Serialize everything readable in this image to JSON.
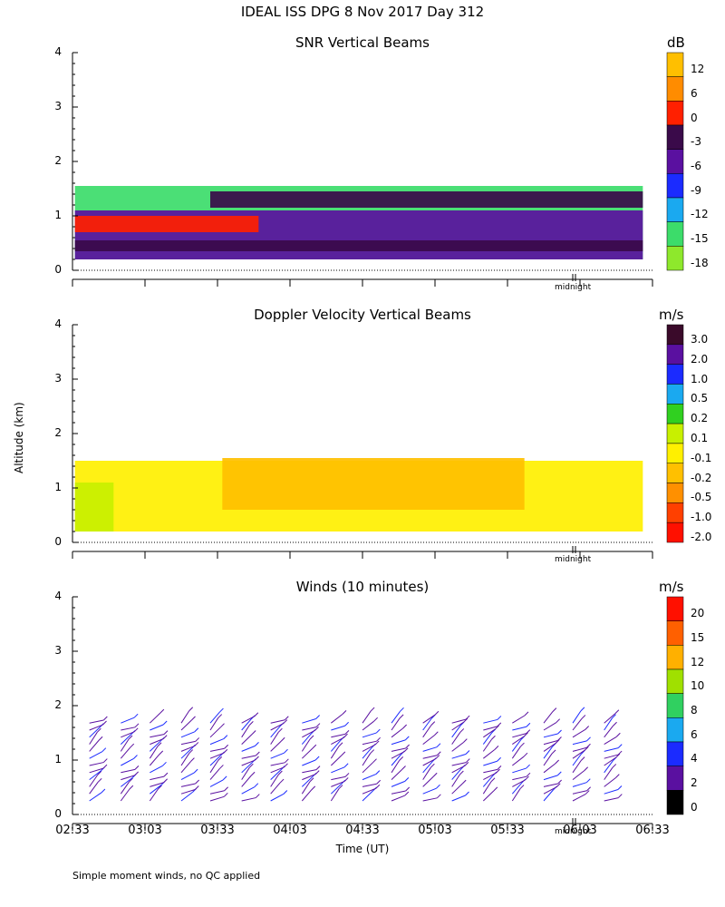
{
  "header": {
    "title": "IDEAL ISS DPG    8 Nov 2017 Day 312"
  },
  "axis": {
    "ylabel": "Altitude (km)",
    "xlabel": "Time (UT)",
    "y_ticks": [
      "0",
      "1",
      "2",
      "3",
      "4"
    ],
    "x_ticks": [
      "02:33",
      "03:03",
      "03:33",
      "04:03",
      "04:33",
      "05:03",
      "05:33",
      "06:03",
      "06:33"
    ],
    "midnight_label": "midnight"
  },
  "footnote": "Simple moment winds, no QC applied",
  "chart_data": [
    {
      "type": "heatmap",
      "title": "SNR Vertical Beams",
      "units": "dB",
      "ylabel": "Altitude (km)",
      "ylim": [
        0,
        4
      ],
      "x_range": [
        "02:33",
        "06:33"
      ],
      "colorbar": {
        "labels": [
          "12",
          "6",
          "0",
          "-3",
          "-6",
          "-9",
          "-12",
          "-15",
          "-18"
        ],
        "colors": [
          "#FFBF00",
          "#FF8C00",
          "#FF2000",
          "#3A0A4A",
          "#5A10A0",
          "#1B2BFF",
          "#1AA9F0",
          "#3CDC6A",
          "#8EE82C"
        ]
      },
      "layers": [
        {
          "x": [
            "02:34",
            "06:29"
          ],
          "y": [
            0.2,
            1.55
          ],
          "level": "-15"
        },
        {
          "x": [
            "02:34",
            "06:29"
          ],
          "y": [
            0.2,
            1.1
          ],
          "level": "-6"
        },
        {
          "x": [
            "02:34",
            "03:50"
          ],
          "y": [
            0.7,
            1.0
          ],
          "level": "0"
        },
        {
          "x": [
            "03:30",
            "06:29"
          ],
          "y": [
            1.15,
            1.45
          ],
          "level": "-3"
        },
        {
          "x": [
            "02:34",
            "06:29"
          ],
          "y": [
            0.35,
            0.55
          ],
          "level": "-3"
        }
      ]
    },
    {
      "type": "heatmap",
      "title": "Doppler Velocity Vertical Beams",
      "units": "m/s",
      "ylabel": "Altitude (km)",
      "ylim": [
        0,
        4
      ],
      "x_range": [
        "02:33",
        "06:33"
      ],
      "colorbar": {
        "labels": [
          "3.0",
          "2.0",
          "1.0",
          "0.5",
          "0.2",
          "0.1",
          "-0.1",
          "-0.2",
          "-0.5",
          "-1.0",
          "-2.0"
        ],
        "colors": [
          "#3A0A2A",
          "#5A10A0",
          "#1B2BFF",
          "#1AA9F0",
          "#30D020",
          "#C8F000",
          "#FFF000",
          "#FFC000",
          "#FF9000",
          "#FF4000",
          "#FF1000"
        ]
      },
      "layers": [
        {
          "x": [
            "02:34",
            "06:29"
          ],
          "y": [
            0.2,
            1.5
          ],
          "level": "-0.1"
        },
        {
          "x": [
            "03:35",
            "05:40"
          ],
          "y": [
            0.6,
            1.55
          ],
          "level": "-0.2"
        },
        {
          "x": [
            "02:34",
            "02:50"
          ],
          "y": [
            0.2,
            1.1
          ],
          "level": "0.1"
        }
      ]
    },
    {
      "type": "scatter",
      "title": "Winds (10 minutes)",
      "units": "m/s",
      "ylabel": "Altitude (km)",
      "xlabel": "Time (UT)",
      "ylim": [
        0,
        4
      ],
      "x_range": [
        "02:33",
        "06:33"
      ],
      "colorbar": {
        "labels": [
          "20",
          "15",
          "12",
          "10",
          "8",
          "6",
          "4",
          "2",
          "0"
        ],
        "colors": [
          "#FF1000",
          "#FF6000",
          "#FFB000",
          "#A0E000",
          "#30D060",
          "#1AA9F0",
          "#1B2BFF",
          "#5A10A0",
          "#000000"
        ]
      },
      "profile_times": [
        "02:40",
        "02:53",
        "03:05",
        "03:18",
        "03:30",
        "03:43",
        "03:55",
        "04:08",
        "04:20",
        "04:33",
        "04:45",
        "04:58",
        "05:10",
        "05:23",
        "05:35",
        "05:48",
        "06:00",
        "06:13"
      ]
    }
  ]
}
